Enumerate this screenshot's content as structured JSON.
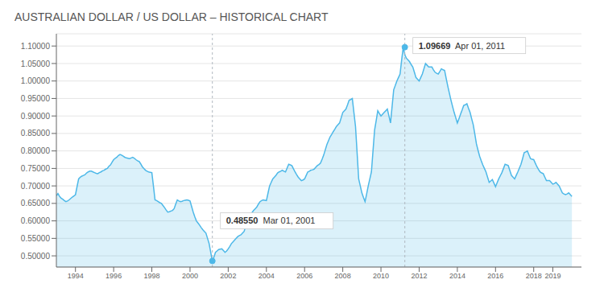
{
  "chart_data": {
    "type": "area",
    "title": "AUSTRALIAN DOLLAR / US DOLLAR – HISTORICAL CHART",
    "color": "#4db8e8",
    "grid": true,
    "xlim": [
      1993.0,
      2020.5
    ],
    "xticks": [
      1994,
      1996,
      1998,
      2000,
      2002,
      2004,
      2006,
      2008,
      2010,
      2012,
      2014,
      2016,
      2018,
      2019
    ],
    "ylim": [
      0.468,
      1.135
    ],
    "yticks": [
      {
        "value": 0.5,
        "label": "0.50000"
      },
      {
        "value": 0.55,
        "label": "0.55000"
      },
      {
        "value": 0.6,
        "label": "0.60000"
      },
      {
        "value": 0.65,
        "label": "0.65000"
      },
      {
        "value": 0.7,
        "label": "0.70000"
      },
      {
        "value": 0.75,
        "label": "0.75000"
      },
      {
        "value": 0.8,
        "label": "0.80000"
      },
      {
        "value": 0.85,
        "label": "0.85000"
      },
      {
        "value": 0.9,
        "label": "0.90000"
      },
      {
        "value": 0.95,
        "label": "0.95000"
      },
      {
        "value": 1.0,
        "label": "1.00000"
      },
      {
        "value": 1.05,
        "label": "1.05000"
      },
      {
        "value": 1.1,
        "label": "1.10000"
      }
    ],
    "annotations": [
      {
        "text": "0.48550  Mar 01, 2001",
        "x": 2001.17,
        "y": 0.4855
      },
      {
        "text": "1.09669  Apr 01, 2011",
        "x": 2011.25,
        "y": 1.09669
      }
    ],
    "x": [
      1993.0,
      1993.083,
      1993.167,
      1993.25,
      1993.333,
      1993.417,
      1993.5,
      1993.583,
      1993.667,
      1993.75,
      1993.833,
      1993.917,
      1994.0,
      1994.083,
      1994.167,
      1994.25,
      1994.333,
      1994.417,
      1994.5,
      1994.583,
      1994.667,
      1994.75,
      1994.833,
      1994.917,
      1995.0,
      1995.083,
      1995.167,
      1995.25,
      1995.333,
      1995.417,
      1995.5,
      1995.583,
      1995.667,
      1995.75,
      1995.833,
      1995.917,
      1996.0,
      1996.083,
      1996.167,
      1996.25,
      1996.333,
      1996.417,
      1996.5,
      1996.583,
      1996.667,
      1996.75,
      1996.833,
      1996.917,
      1997.0,
      1997.083,
      1997.167,
      1997.25,
      1997.333,
      1997.417,
      1997.5,
      1997.583,
      1997.667,
      1997.75,
      1997.833,
      1997.917,
      1998.0,
      1998.083,
      1998.167,
      1998.25,
      1998.333,
      1998.417,
      1998.5,
      1998.583,
      1998.667,
      1998.75,
      1998.833,
      1998.917,
      1999.0,
      1999.083,
      1999.167,
      1999.25,
      1999.333,
      1999.417,
      1999.5,
      1999.583,
      1999.667,
      1999.75,
      1999.833,
      1999.917,
      2000.0,
      2000.083,
      2000.167,
      2000.25,
      2000.333,
      2000.417,
      2000.5,
      2000.583,
      2000.667,
      2000.75,
      2000.833,
      2000.917,
      2001.0,
      2001.083,
      2001.167,
      2001.25,
      2001.333,
      2001.417,
      2001.5,
      2001.583,
      2001.667,
      2001.75,
      2001.833,
      2001.917,
      2002.0,
      2002.083,
      2002.167,
      2002.25,
      2002.333,
      2002.417,
      2002.5,
      2002.583,
      2002.667,
      2002.75,
      2002.833,
      2002.917,
      2003.0,
      2003.083,
      2003.167,
      2003.25,
      2003.333,
      2003.417,
      2003.5,
      2003.583,
      2003.667,
      2003.75,
      2003.833,
      2003.917,
      2004.0,
      2004.083,
      2004.167,
      2004.25,
      2004.333,
      2004.417,
      2004.5,
      2004.583,
      2004.667,
      2004.75,
      2004.833,
      2004.917,
      2005.0,
      2005.083,
      2005.167,
      2005.25,
      2005.333,
      2005.417,
      2005.5,
      2005.583,
      2005.667,
      2005.75,
      2005.833,
      2005.917,
      2006.0,
      2006.083,
      2006.167,
      2006.25,
      2006.333,
      2006.417,
      2006.5,
      2006.583,
      2006.667,
      2006.75,
      2006.833,
      2006.917,
      2007.0,
      2007.083,
      2007.167,
      2007.25,
      2007.333,
      2007.417,
      2007.5,
      2007.583,
      2007.667,
      2007.75,
      2007.833,
      2007.917,
      2008.0,
      2008.083,
      2008.167,
      2008.25,
      2008.333,
      2008.417,
      2008.5,
      2008.583,
      2008.667,
      2008.75,
      2008.833,
      2008.917,
      2009.0,
      2009.083,
      2009.167,
      2009.25,
      2009.333,
      2009.417,
      2009.5,
      2009.583,
      2009.667,
      2009.75,
      2009.833,
      2009.917,
      2010.0,
      2010.083,
      2010.167,
      2010.25,
      2010.333,
      2010.417,
      2010.5,
      2010.583,
      2010.667,
      2010.75,
      2010.833,
      2010.917,
      2011.0,
      2011.083,
      2011.167,
      2011.25,
      2011.333,
      2011.417,
      2011.5,
      2011.583,
      2011.667,
      2011.75,
      2011.833,
      2011.917,
      2012.0,
      2012.083,
      2012.167,
      2012.25,
      2012.333,
      2012.417,
      2012.5,
      2012.583,
      2012.667,
      2012.75,
      2012.833,
      2012.917,
      2013.0,
      2013.083,
      2013.167,
      2013.25,
      2013.333,
      2013.417,
      2013.5,
      2013.583,
      2013.667,
      2013.75,
      2013.833,
      2013.917,
      2014.0,
      2014.083,
      2014.167,
      2014.25,
      2014.333,
      2014.417,
      2014.5,
      2014.583,
      2014.667,
      2014.75,
      2014.833,
      2014.917,
      2015.0,
      2015.083,
      2015.167,
      2015.25,
      2015.333,
      2015.417,
      2015.5,
      2015.583,
      2015.667,
      2015.75,
      2015.833,
      2015.917,
      2016.0,
      2016.083,
      2016.167,
      2016.25,
      2016.333,
      2016.417,
      2016.5,
      2016.583,
      2016.667,
      2016.75,
      2016.833,
      2016.917,
      2017.0,
      2017.083,
      2017.167,
      2017.25,
      2017.333,
      2017.417,
      2017.5,
      2017.583,
      2017.667,
      2017.75,
      2017.833,
      2017.917,
      2018.0,
      2018.083,
      2018.167,
      2018.25,
      2018.333,
      2018.417,
      2018.5,
      2018.583,
      2018.667,
      2018.75,
      2018.833,
      2018.917,
      2019.0,
      2019.083,
      2019.167,
      2019.25,
      2019.333,
      2019.417,
      2019.5,
      2019.583,
      2019.667,
      2019.75,
      2019.833,
      2019.917,
      2020.0
    ],
    "values": [
      0.672,
      0.678,
      0.67,
      0.665,
      0.662,
      0.658,
      0.655,
      0.657,
      0.66,
      0.664,
      0.668,
      0.671,
      0.675,
      0.698,
      0.72,
      0.725,
      0.728,
      0.73,
      0.732,
      0.737,
      0.74,
      0.742,
      0.742,
      0.74,
      0.738,
      0.736,
      0.735,
      0.738,
      0.74,
      0.743,
      0.745,
      0.748,
      0.75,
      0.756,
      0.76,
      0.768,
      0.775,
      0.779,
      0.782,
      0.787,
      0.79,
      0.788,
      0.785,
      0.782,
      0.78,
      0.779,
      0.778,
      0.78,
      0.782,
      0.779,
      0.775,
      0.772,
      0.77,
      0.763,
      0.755,
      0.75,
      0.745,
      0.742,
      0.74,
      0.739,
      0.738,
      0.7,
      0.66,
      0.658,
      0.655,
      0.652,
      0.65,
      0.644,
      0.638,
      0.631,
      0.625,
      0.626,
      0.628,
      0.63,
      0.635,
      0.648,
      0.66,
      0.657,
      0.655,
      0.656,
      0.658,
      0.659,
      0.66,
      0.659,
      0.657,
      0.641,
      0.625,
      0.612,
      0.6,
      0.594,
      0.588,
      0.581,
      0.575,
      0.57,
      0.565,
      0.55,
      0.535,
      0.51,
      0.4855,
      0.496,
      0.51,
      0.514,
      0.518,
      0.519,
      0.52,
      0.515,
      0.51,
      0.514,
      0.52,
      0.527,
      0.535,
      0.54,
      0.545,
      0.55,
      0.555,
      0.558,
      0.56,
      0.565,
      0.57,
      0.585,
      0.6,
      0.609,
      0.618,
      0.624,
      0.63,
      0.635,
      0.64,
      0.648,
      0.655,
      0.658,
      0.66,
      0.659,
      0.658,
      0.679,
      0.7,
      0.71,
      0.72,
      0.725,
      0.73,
      0.737,
      0.74,
      0.742,
      0.745,
      0.742,
      0.74,
      0.751,
      0.762,
      0.76,
      0.758,
      0.749,
      0.74,
      0.732,
      0.725,
      0.72,
      0.715,
      0.717,
      0.72,
      0.73,
      0.74,
      0.742,
      0.745,
      0.746,
      0.748,
      0.753,
      0.758,
      0.761,
      0.765,
      0.776,
      0.788,
      0.803,
      0.818,
      0.829,
      0.84,
      0.847,
      0.855,
      0.862,
      0.87,
      0.875,
      0.88,
      0.895,
      0.91,
      0.915,
      0.92,
      0.932,
      0.945,
      0.947,
      0.95,
      0.91,
      0.87,
      0.795,
      0.72,
      0.7,
      0.68,
      0.667,
      0.655,
      0.677,
      0.7,
      0.72,
      0.74,
      0.8,
      0.86,
      0.887,
      0.915,
      0.907,
      0.9,
      0.905,
      0.91,
      0.915,
      0.92,
      0.9,
      0.88,
      0.927,
      0.975,
      0.987,
      1.0,
      1.01,
      1.02,
      1.06,
      1.09669,
      1.075,
      1.065,
      1.06,
      1.055,
      1.047,
      1.04,
      1.025,
      1.01,
      1.005,
      1.0,
      1.01,
      1.02,
      1.035,
      1.05,
      1.045,
      1.04,
      1.04,
      1.04,
      1.032,
      1.025,
      1.022,
      1.02,
      1.027,
      1.035,
      1.032,
      1.03,
      1.007,
      0.985,
      0.965,
      0.945,
      0.927,
      0.91,
      0.895,
      0.88,
      0.892,
      0.905,
      0.917,
      0.93,
      0.932,
      0.935,
      0.922,
      0.91,
      0.892,
      0.875,
      0.848,
      0.82,
      0.802,
      0.785,
      0.772,
      0.76,
      0.75,
      0.74,
      0.725,
      0.71,
      0.714,
      0.718,
      0.708,
      0.698,
      0.709,
      0.72,
      0.729,
      0.738,
      0.75,
      0.762,
      0.76,
      0.758,
      0.744,
      0.73,
      0.725,
      0.72,
      0.73,
      0.74,
      0.751,
      0.762,
      0.778,
      0.795,
      0.797,
      0.8,
      0.789,
      0.778,
      0.776,
      0.775,
      0.765,
      0.755,
      0.747,
      0.74,
      0.737,
      0.735,
      0.725,
      0.715,
      0.715,
      0.715,
      0.71,
      0.705,
      0.707,
      0.71,
      0.705,
      0.7,
      0.69,
      0.68,
      0.677,
      0.675,
      0.677,
      0.68,
      0.675,
      0.67
    ]
  }
}
